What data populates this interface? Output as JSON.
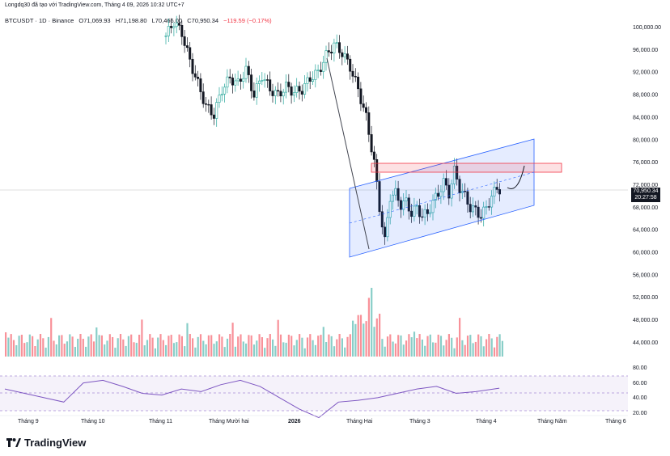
{
  "header_text": "Longdq30 đã tạo với TradingView.com, Tháng 4 09, 2026 10:32 UTC+7",
  "symbol": {
    "name": "BTCUSDT · 1D · Binance",
    "open": "O71,069.93",
    "high": "H71,198.80",
    "low": "L70,466.00",
    "close": "C70,950.34",
    "change": "−119.59 (−0.17%)"
  },
  "current_price": {
    "price": "70,950.34",
    "countdown": "20:27:58"
  },
  "price_axis": [
    "100,000.00",
    "96,000.00",
    "92,000.00",
    "88,000.00",
    "84,000.00",
    "80,000.00",
    "76,000.00",
    "72,000.00",
    "68,000.00",
    "64,000.00",
    "60,000.00",
    "56,000.00",
    "52,000.00",
    "48,000.00",
    "44,000.00"
  ],
  "rsi_axis": [
    "80.00",
    "60.00",
    "40.00",
    "20.00"
  ],
  "time_axis": [
    "Tháng 9",
    "Tháng 10",
    "Tháng 11",
    "Tháng Mười hai",
    "2026",
    "Tháng Hai",
    "Tháng 3",
    "Tháng 4",
    "Tháng Năm",
    "Tháng 6"
  ],
  "brand": "TradingView",
  "colors": {
    "up": "#26a69a",
    "down": "#131722",
    "bb": "#2962ff",
    "channel": "#2962ff",
    "resistance": "#f23645",
    "rsi": "#7e57c2"
  },
  "chart_data": {
    "type": "candlestick",
    "symbol": "BTCUSDT",
    "timeframe": "1D",
    "ylim": [
      44000,
      102000
    ],
    "last_price": 70950.34,
    "series_close": [
      [
        0,
        98500
      ],
      [
        3,
        101000
      ],
      [
        6,
        99000
      ],
      [
        9,
        94000
      ],
      [
        12,
        90000
      ],
      [
        15,
        86000
      ],
      [
        18,
        84500
      ],
      [
        21,
        89000
      ],
      [
        24,
        91000
      ],
      [
        27,
        90000
      ],
      [
        30,
        92500
      ],
      [
        33,
        88000
      ],
      [
        36,
        91500
      ],
      [
        39,
        89000
      ],
      [
        42,
        88000
      ],
      [
        45,
        89500
      ],
      [
        48,
        88500
      ],
      [
        51,
        89000
      ],
      [
        54,
        91000
      ],
      [
        57,
        92000
      ],
      [
        60,
        95000
      ],
      [
        63,
        97000
      ],
      [
        66,
        95500
      ],
      [
        69,
        93000
      ],
      [
        72,
        89000
      ],
      [
        75,
        84000
      ],
      [
        78,
        76000
      ],
      [
        80,
        68000
      ],
      [
        82,
        62000
      ],
      [
        84,
        70000
      ],
      [
        86,
        70500
      ],
      [
        88,
        68500
      ],
      [
        90,
        69000
      ],
      [
        92,
        67000
      ],
      [
        94,
        68000
      ],
      [
        96,
        66500
      ],
      [
        98,
        67000
      ],
      [
        100,
        69000
      ],
      [
        102,
        70500
      ],
      [
        104,
        72500
      ],
      [
        106,
        70500
      ],
      [
        108,
        74500
      ],
      [
        110,
        71500
      ],
      [
        112,
        70000
      ],
      [
        114,
        68000
      ],
      [
        116,
        67500
      ],
      [
        118,
        66500
      ],
      [
        120,
        68000
      ],
      [
        122,
        70000
      ],
      [
        124,
        71500
      ],
      [
        126,
        70950
      ]
    ],
    "rsi": [
      [
        0,
        55
      ],
      [
        5,
        50
      ],
      [
        10,
        45
      ],
      [
        15,
        40
      ],
      [
        20,
        62
      ],
      [
        25,
        65
      ],
      [
        30,
        58
      ],
      [
        35,
        50
      ],
      [
        40,
        48
      ],
      [
        45,
        55
      ],
      [
        50,
        52
      ],
      [
        55,
        60
      ],
      [
        60,
        65
      ],
      [
        65,
        58
      ],
      [
        70,
        45
      ],
      [
        75,
        32
      ],
      [
        80,
        22
      ],
      [
        85,
        40
      ],
      [
        90,
        42
      ],
      [
        95,
        45
      ],
      [
        100,
        50
      ],
      [
        105,
        55
      ],
      [
        110,
        58
      ],
      [
        115,
        50
      ],
      [
        120,
        52
      ],
      [
        126,
        56
      ]
    ],
    "rsi_bands": [
      70,
      50,
      30
    ]
  }
}
